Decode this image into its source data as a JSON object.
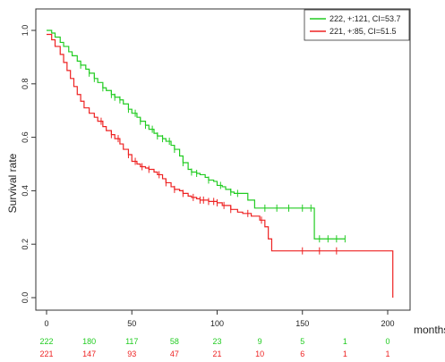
{
  "chart_data": {
    "type": "line",
    "subtype": "kaplan-meier",
    "title": "",
    "xlabel": "months",
    "ylabel": "Survival rate",
    "xlim": [
      0,
      205
    ],
    "ylim": [
      0,
      1.0
    ],
    "xticks": [
      0,
      50,
      100,
      150,
      200
    ],
    "yticks": [
      0.0,
      0.2,
      0.4,
      0.6,
      0.8,
      1.0
    ],
    "xtick_labels": [
      "0",
      "50",
      "100",
      "150",
      "200"
    ],
    "ytick_labels": [
      "0.0",
      "0.2",
      "0.4",
      "0.6",
      "0.8",
      "1.0"
    ],
    "legend_position": "top-right",
    "grid": false,
    "series": [
      {
        "name": "222, +:121, CI=53.7",
        "color": "#22cc22",
        "steps": [
          [
            0,
            1.0
          ],
          [
            3,
            0.99
          ],
          [
            5,
            0.975
          ],
          [
            8,
            0.955
          ],
          [
            10,
            0.94
          ],
          [
            13,
            0.92
          ],
          [
            15,
            0.905
          ],
          [
            18,
            0.885
          ],
          [
            20,
            0.87
          ],
          [
            23,
            0.855
          ],
          [
            25,
            0.84
          ],
          [
            28,
            0.82
          ],
          [
            30,
            0.805
          ],
          [
            33,
            0.785
          ],
          [
            35,
            0.775
          ],
          [
            38,
            0.76
          ],
          [
            40,
            0.75
          ],
          [
            43,
            0.74
          ],
          [
            45,
            0.725
          ],
          [
            48,
            0.705
          ],
          [
            50,
            0.69
          ],
          [
            53,
            0.675
          ],
          [
            55,
            0.66
          ],
          [
            58,
            0.645
          ],
          [
            60,
            0.63
          ],
          [
            63,
            0.615
          ],
          [
            65,
            0.605
          ],
          [
            68,
            0.595
          ],
          [
            70,
            0.585
          ],
          [
            73,
            0.57
          ],
          [
            75,
            0.555
          ],
          [
            78,
            0.53
          ],
          [
            80,
            0.505
          ],
          [
            83,
            0.48
          ],
          [
            85,
            0.47
          ],
          [
            88,
            0.465
          ],
          [
            90,
            0.46
          ],
          [
            93,
            0.45
          ],
          [
            95,
            0.44
          ],
          [
            98,
            0.435
          ],
          [
            100,
            0.42
          ],
          [
            103,
            0.415
          ],
          [
            105,
            0.405
          ],
          [
            108,
            0.395
          ],
          [
            110,
            0.39
          ],
          [
            118,
            0.365
          ],
          [
            122,
            0.335
          ],
          [
            125,
            0.335
          ],
          [
            150,
            0.335
          ],
          [
            157,
            0.22
          ],
          [
            160,
            0.22
          ],
          [
            175,
            0.22
          ]
        ],
        "censor_x": [
          20,
          25,
          28,
          33,
          38,
          40,
          43,
          48,
          52,
          55,
          58,
          62,
          65,
          68,
          72,
          75,
          80,
          85,
          88,
          95,
          102,
          108,
          112,
          128,
          135,
          142,
          150,
          155,
          160,
          165,
          170,
          175
        ]
      },
      {
        "name": "221, +:85, CI=51.5",
        "color": "#ee2222",
        "steps": [
          [
            0,
            0.985
          ],
          [
            3,
            0.965
          ],
          [
            5,
            0.94
          ],
          [
            8,
            0.91
          ],
          [
            10,
            0.88
          ],
          [
            12,
            0.85
          ],
          [
            14,
            0.82
          ],
          [
            16,
            0.79
          ],
          [
            18,
            0.76
          ],
          [
            20,
            0.735
          ],
          [
            22,
            0.71
          ],
          [
            25,
            0.69
          ],
          [
            28,
            0.675
          ],
          [
            30,
            0.66
          ],
          [
            33,
            0.64
          ],
          [
            35,
            0.625
          ],
          [
            38,
            0.61
          ],
          [
            40,
            0.595
          ],
          [
            43,
            0.575
          ],
          [
            45,
            0.555
          ],
          [
            48,
            0.535
          ],
          [
            50,
            0.51
          ],
          [
            53,
            0.5
          ],
          [
            55,
            0.49
          ],
          [
            58,
            0.485
          ],
          [
            60,
            0.48
          ],
          [
            63,
            0.47
          ],
          [
            65,
            0.46
          ],
          [
            68,
            0.445
          ],
          [
            70,
            0.43
          ],
          [
            73,
            0.415
          ],
          [
            75,
            0.405
          ],
          [
            78,
            0.4
          ],
          [
            80,
            0.39
          ],
          [
            83,
            0.38
          ],
          [
            85,
            0.375
          ],
          [
            88,
            0.37
          ],
          [
            90,
            0.365
          ],
          [
            95,
            0.36
          ],
          [
            100,
            0.355
          ],
          [
            103,
            0.345
          ],
          [
            108,
            0.33
          ],
          [
            112,
            0.32
          ],
          [
            115,
            0.315
          ],
          [
            120,
            0.305
          ],
          [
            125,
            0.29
          ],
          [
            128,
            0.265
          ],
          [
            130,
            0.22
          ],
          [
            132,
            0.175
          ],
          [
            140,
            0.175
          ],
          [
            155,
            0.175
          ],
          [
            165,
            0.175
          ],
          [
            203,
            0.175
          ],
          [
            203,
            0.0
          ]
        ],
        "censor_x": [
          32,
          38,
          42,
          48,
          52,
          56,
          60,
          66,
          70,
          75,
          80,
          86,
          90,
          92,
          95,
          98,
          100,
          104,
          108,
          118,
          126,
          150,
          160,
          170
        ]
      }
    ],
    "risk_table": {
      "times": [
        0,
        25,
        50,
        75,
        100,
        125,
        150,
        175,
        200
      ],
      "rows": [
        {
          "color": "#22cc22",
          "values": [
            "222",
            "180",
            "117",
            "58",
            "23",
            "9",
            "5",
            "1",
            "0"
          ]
        },
        {
          "color": "#ee2222",
          "values": [
            "221",
            "147",
            "93",
            "47",
            "21",
            "10",
            "6",
            "1",
            "1"
          ]
        }
      ]
    }
  }
}
